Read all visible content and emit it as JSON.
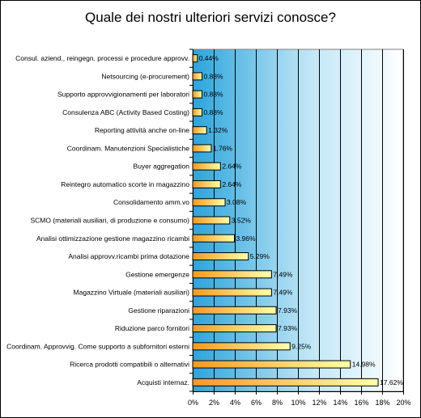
{
  "chart_data": {
    "type": "bar",
    "orientation": "horizontal",
    "title": "Quale dei nostri ulteriori servizi conosce?",
    "xlabel": "",
    "ylabel": "",
    "xlim": [
      0,
      20
    ],
    "ticks": [
      0,
      2,
      4,
      6,
      8,
      10,
      12,
      14,
      16,
      18,
      20
    ],
    "tick_format": "percent",
    "grid": true,
    "legend": "none",
    "categories": [
      "Consul. aziend., reingegn. processi e procedure approvv.",
      "Netsourcing (e-procurement)",
      "Supporto approvvigionamenti per laboratori",
      "Consulenza ABC (Activity Based Costing)",
      "Reporting attività anche on-line",
      "Coordinam. Manutenzioni Specialistiche",
      "Buyer aggregation",
      "Reintegro automatico scorte in magazzino",
      "Consolidamento amm.vo",
      "SCMO (materiali ausiliari, di produzione e consumo)",
      "Analisi ottimizzazione gestione magazzino ricambi",
      "Analisi approvv.ricambi prima dotazione",
      "Gestione emergenze",
      "Magazzino Virtuale (materiali ausiliari)",
      "Gestione riparazioni",
      "Riduzione parco fornitori",
      "Coordinam. Approvvig. Come supporto a subfornitori esterni",
      "Ricerca prodotti compatibili o alternativi",
      "Acquisti internaz."
    ],
    "values": [
      0.44,
      0.88,
      0.88,
      0.88,
      1.32,
      1.76,
      2.64,
      2.64,
      3.08,
      3.52,
      3.96,
      5.29,
      7.49,
      7.49,
      7.93,
      7.93,
      9.25,
      14.98,
      17.62
    ],
    "value_labels": [
      "0.44%",
      "0.88%",
      "0.88%",
      "0.88%",
      "1.32%",
      "1.76%",
      "2.64%",
      "2.64%",
      "3.08%",
      "3.52%",
      "3.96%",
      "5.29%",
      "7.49%",
      "7.49%",
      "7.93%",
      "7.93%",
      "9.25%",
      "14.98%",
      "17.62%"
    ],
    "tick_labels": [
      "0%",
      "2%",
      "4%",
      "6%",
      "8%",
      "10%",
      "12%",
      "14%",
      "16%",
      "18%",
      "20%"
    ],
    "colors": {
      "bar_start": "#f39a1f",
      "bar_end": "#ffffa8",
      "bar_stroke": "#000000",
      "plot_bg_start": "#2ba4dc",
      "plot_bg_end": "#ffffff",
      "grid": "#000000"
    }
  }
}
